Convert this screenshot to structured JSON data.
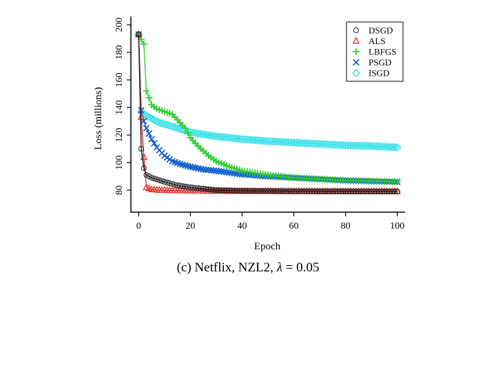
{
  "caption": {
    "prefix": "(c) Netflix, NZL2, ",
    "lambda_symbol": "λ",
    "suffix": " = 0.05"
  },
  "chart_data": {
    "type": "line",
    "title": "",
    "xlabel": "Epoch",
    "ylabel": "Loss (millions)",
    "xlim": [
      -3,
      103
    ],
    "ylim": [
      64,
      206
    ],
    "xticks": [
      0,
      20,
      40,
      60,
      80,
      100
    ],
    "yticks": [
      80,
      100,
      120,
      140,
      160,
      180,
      200
    ],
    "legend_position": "top-right",
    "series": [
      {
        "name": "DSGD",
        "marker": "circle",
        "color": "#1a1a1a",
        "x": [
          0,
          1,
          2,
          3,
          5,
          10,
          15,
          20,
          25,
          30,
          40,
          60,
          80,
          100
        ],
        "y": [
          193,
          110,
          96,
          91,
          89,
          86,
          83.5,
          82,
          81,
          80,
          79.5,
          79.2,
          79.1,
          79
        ]
      },
      {
        "name": "ALS",
        "marker": "triangle",
        "color": "#e03030",
        "x": [
          0,
          1,
          2,
          3,
          5,
          8,
          12,
          20,
          30,
          40,
          60,
          80,
          100
        ],
        "y": [
          193,
          133,
          104,
          82,
          80.5,
          80,
          79.8,
          79.5,
          79.3,
          79.2,
          79.1,
          79.05,
          79
        ]
      },
      {
        "name": "LBFGS",
        "marker": "plus",
        "color": "#33cc33",
        "x": [
          0,
          2,
          3,
          5,
          7,
          10,
          13,
          15,
          18,
          20,
          23,
          27,
          30,
          35,
          40,
          50,
          60,
          70,
          80,
          90,
          100
        ],
        "y": [
          193,
          186,
          152,
          142,
          139,
          137,
          135,
          131,
          125,
          118,
          112,
          105,
          101,
          97,
          94,
          91,
          89,
          88,
          87,
          86.5,
          86
        ]
      },
      {
        "name": "PSGD",
        "marker": "x",
        "color": "#1560d0",
        "x": [
          0,
          1,
          2,
          3,
          5,
          7,
          10,
          13,
          16,
          20,
          25,
          30,
          40,
          50,
          60,
          70,
          80,
          90,
          100
        ],
        "y": [
          193,
          138,
          130,
          125,
          117,
          111,
          105,
          101,
          99,
          97,
          95,
          94,
          91.5,
          90,
          89,
          88,
          87,
          86.5,
          86
        ]
      },
      {
        "name": "ISGD",
        "marker": "diamond",
        "color": "#33e0e8",
        "x": [
          0,
          1,
          3,
          5,
          8,
          10,
          15,
          20,
          25,
          30,
          40,
          50,
          60,
          70,
          80,
          90,
          100
        ],
        "y": [
          193,
          137,
          134,
          132,
          129,
          128,
          125,
          122,
          120.5,
          119,
          117,
          115.5,
          114.5,
          113.5,
          112.5,
          112,
          111
        ]
      }
    ]
  }
}
